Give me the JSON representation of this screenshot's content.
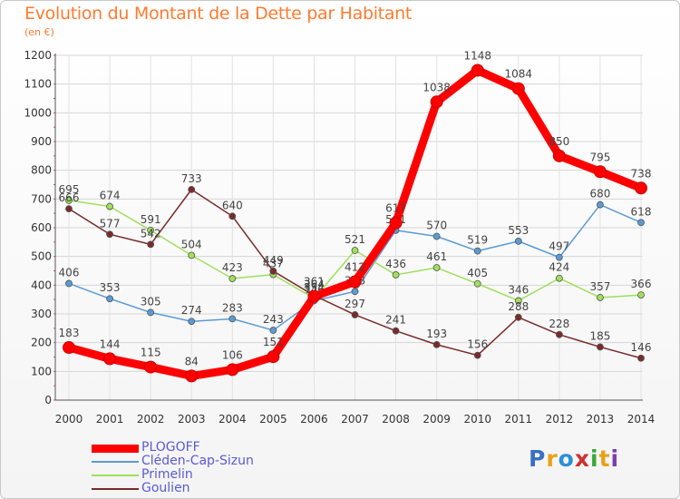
{
  "header": {
    "title": "Evolution du Montant de la Dette par Habitant",
    "unit": "(en €)"
  },
  "logo": {
    "text": "Proxiti",
    "letters": [
      {
        "char": "P",
        "color": "#3a6fc4"
      },
      {
        "char": "r",
        "color": "#e8a21a"
      },
      {
        "char": "o",
        "color": "#2e8fd6"
      },
      {
        "char": "x",
        "color": "#d12f2f"
      },
      {
        "char": "i",
        "color": "#3aa83a"
      },
      {
        "char": "t",
        "color": "#e8a21a"
      },
      {
        "char": "i",
        "color": "#7a3fb0"
      }
    ]
  },
  "chart_data": {
    "type": "line",
    "title": "Evolution du Montant de la Dette par Habitant",
    "ylabel": "(en €)",
    "xlabel": "",
    "x": [
      "2000",
      "2001",
      "2002",
      "2003",
      "2004",
      "2005",
      "2006",
      "2007",
      "2008",
      "2009",
      "2010",
      "2011",
      "2012",
      "2013",
      "2014"
    ],
    "ylim": [
      0,
      1200
    ],
    "yticks": [
      0,
      100,
      200,
      300,
      400,
      500,
      600,
      700,
      800,
      900,
      1000,
      1100,
      1200
    ],
    "yticks_labels": [
      "0",
      "100",
      "200",
      "300",
      "400",
      "500",
      "600",
      "700",
      "800",
      "900",
      "1000",
      "1100",
      "1200"
    ],
    "grid": true,
    "legend_position": "bottom-left",
    "series": [
      {
        "name": "PLOGOFF",
        "color": "#ff0000",
        "highlight": true,
        "values": [
          183,
          144,
          115,
          84,
          106,
          151,
          361,
          412,
          617,
          1038,
          1148,
          1084,
          850,
          795,
          738
        ],
        "labels": [
          "183",
          "144",
          "115",
          "84",
          "106",
          "151",
          "361",
          "412",
          "617",
          "1038",
          "1148",
          "1084",
          "850",
          "795",
          "738"
        ]
      },
      {
        "name": "Cléden-Cap-Sizun",
        "color": "#5b9bd5",
        "values": [
          406,
          353,
          305,
          274,
          283,
          243,
          346,
          378,
          591,
          570,
          519,
          553,
          497,
          680,
          618
        ],
        "labels": [
          "406",
          "353",
          "305",
          "274",
          "283",
          "243",
          "346",
          "378",
          "591",
          "570",
          "519",
          "553",
          "497",
          "680",
          "618"
        ]
      },
      {
        "name": "Primelin",
        "color": "#9ee05a",
        "values": [
          695,
          674,
          591,
          504,
          423,
          437,
          354,
          521,
          436,
          461,
          405,
          346,
          424,
          357,
          366
        ],
        "labels": [
          "695",
          "674",
          "591",
          "504",
          "423",
          "437",
          "354",
          "521",
          "436",
          "461",
          "405",
          "346",
          "424",
          "357",
          "366"
        ]
      },
      {
        "name": "Goulien",
        "color": "#7a2a2a",
        "values": [
          666,
          577,
          542,
          733,
          640,
          449,
          364,
          297,
          241,
          193,
          156,
          288,
          228,
          185,
          146
        ],
        "labels": [
          "666",
          "577",
          "542",
          "733",
          "640",
          "449",
          "364",
          "297",
          "241",
          "193",
          "156",
          "288",
          "228",
          "185",
          "146"
        ]
      }
    ]
  }
}
